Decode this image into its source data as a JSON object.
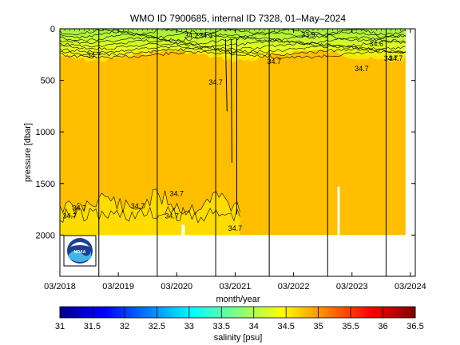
{
  "chart_data": {
    "type": "heatmap",
    "title": "WMO ID 7900685, internal ID 7328, 01–May–2024",
    "xlabel": "month/year",
    "ylabel": "pressure [dbar]",
    "colorbar_label": "salinity [psu]",
    "x_ticks": [
      "03/2018",
      "03/2019",
      "03/2020",
      "03/2021",
      "03/2022",
      "03/2023",
      "03/2024"
    ],
    "x_range": [
      "2018-03",
      "2024-04"
    ],
    "data_extent": [
      "2018-03",
      "2024-02"
    ],
    "y_ticks": [
      0,
      500,
      1000,
      1500,
      2000
    ],
    "y_range": [
      0,
      2400
    ],
    "y_reversed": true,
    "colorbar_ticks": [
      31,
      31.5,
      32,
      32.5,
      33,
      33.5,
      34,
      34.5,
      35,
      35.5,
      36,
      36.5
    ],
    "colorbar_range": [
      31,
      36.5
    ],
    "colormap": "jet",
    "deep_water_color": "#ffbf00",
    "profile_markers": [
      "2018-11",
      "2019-11",
      "2020-11",
      "2021-10",
      "2022-10",
      "2023-10"
    ],
    "contour_labels": [
      {
        "text": "34.7",
        "date": "2018-10",
        "pressure": 280
      },
      {
        "text": "34.2",
        "date": "2020-06",
        "pressure": 90
      },
      {
        "text": "34.1",
        "date": "2020-09",
        "pressure": 90
      },
      {
        "text": "34.7",
        "date": "2020-11",
        "pressure": 540
      },
      {
        "text": "33.9",
        "date": "2022-06",
        "pressure": 80
      },
      {
        "text": "34.7",
        "date": "2021-11",
        "pressure": 340
      },
      {
        "text": "34.6",
        "date": "2023-08",
        "pressure": 170
      },
      {
        "text": "34.7",
        "date": "2023-11",
        "pressure": 310
      },
      {
        "text": "34.7",
        "date": "2023-12",
        "pressure": 310
      },
      {
        "text": "34.7",
        "date": "2023-05",
        "pressure": 410
      },
      {
        "text": "34.7",
        "date": "2018-07",
        "pressure": 1760
      },
      {
        "text": "34.7",
        "date": "2018-05",
        "pressure": 1840
      },
      {
        "text": "34.7",
        "date": "2019-07",
        "pressure": 1740
      },
      {
        "text": "34.7",
        "date": "2020-03",
        "pressure": 1620
      },
      {
        "text": "34.7",
        "date": "2020-02",
        "pressure": 1840
      },
      {
        "text": "34.7",
        "date": "2021-03",
        "pressure": 1960
      }
    ]
  },
  "logo": {
    "text": "NOAA"
  }
}
